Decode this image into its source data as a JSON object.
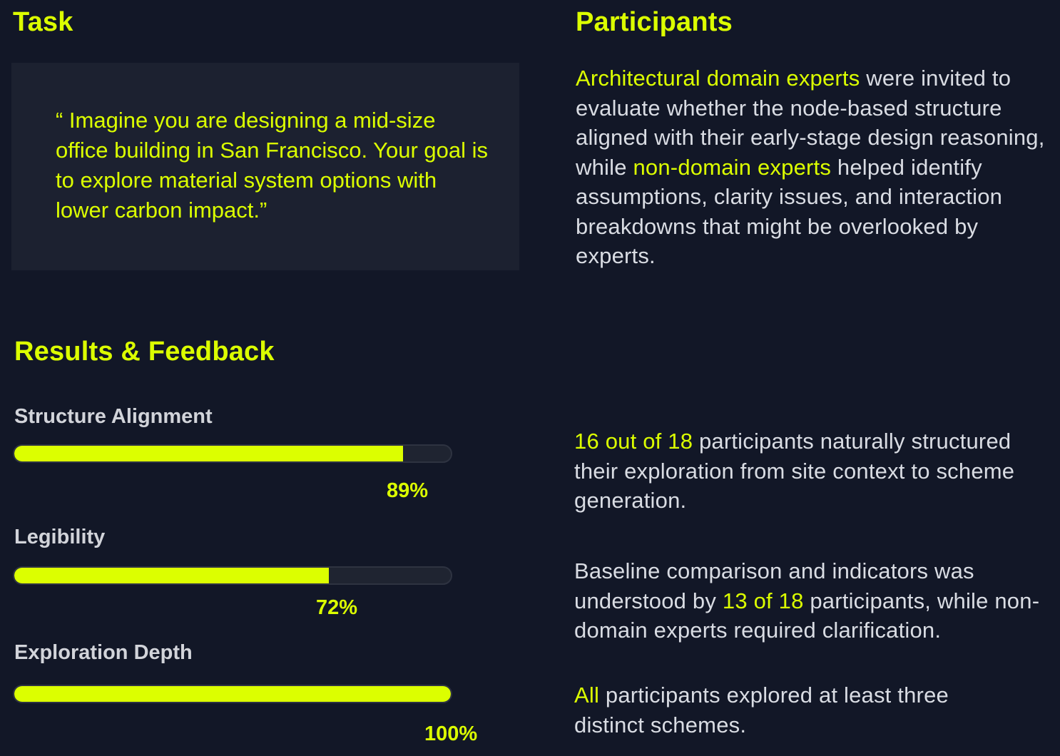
{
  "task": {
    "heading": "Task",
    "quote": "“ Imagine you are designing a mid-size office building in San Francisco. Your goal is to explore material system options with lower carbon impact.”"
  },
  "participants": {
    "heading": "Participants",
    "highlight_1": "Architectural domain experts",
    "text_1": " were invited to evaluate whether the node-based structure aligned with their early-stage design reasoning, while ",
    "highlight_2": "non-domain experts",
    "text_2": " helped identify assumptions, clarity issues, and interaction breakdowns that might be overlooked by experts."
  },
  "results": {
    "heading": "Results & Feedback",
    "metrics": [
      {
        "label": "Structure Alignment",
        "value_text": "89%",
        "fraction": 0.89
      },
      {
        "label": "Legibility",
        "value_text": "72%",
        "fraction": 0.72
      },
      {
        "label": "Exploration Depth",
        "value_text": "100%",
        "fraction": 1.0
      }
    ]
  },
  "findings": [
    {
      "highlight": "16 out of 18",
      "text": " participants naturally structured their exploration from site context to scheme generation."
    },
    {
      "pre": "Baseline comparison and indicators was understood by ",
      "highlight": "13 of 18",
      "post": " participants, while non-domain experts required clarification."
    },
    {
      "highlight": "All",
      "text": " participants explored at least three distinct schemes."
    }
  ],
  "colors": {
    "background": "#121727",
    "card": "#1c2130",
    "accent": "#dcff00",
    "text": "#d9dce3",
    "track": "#1f2431"
  }
}
